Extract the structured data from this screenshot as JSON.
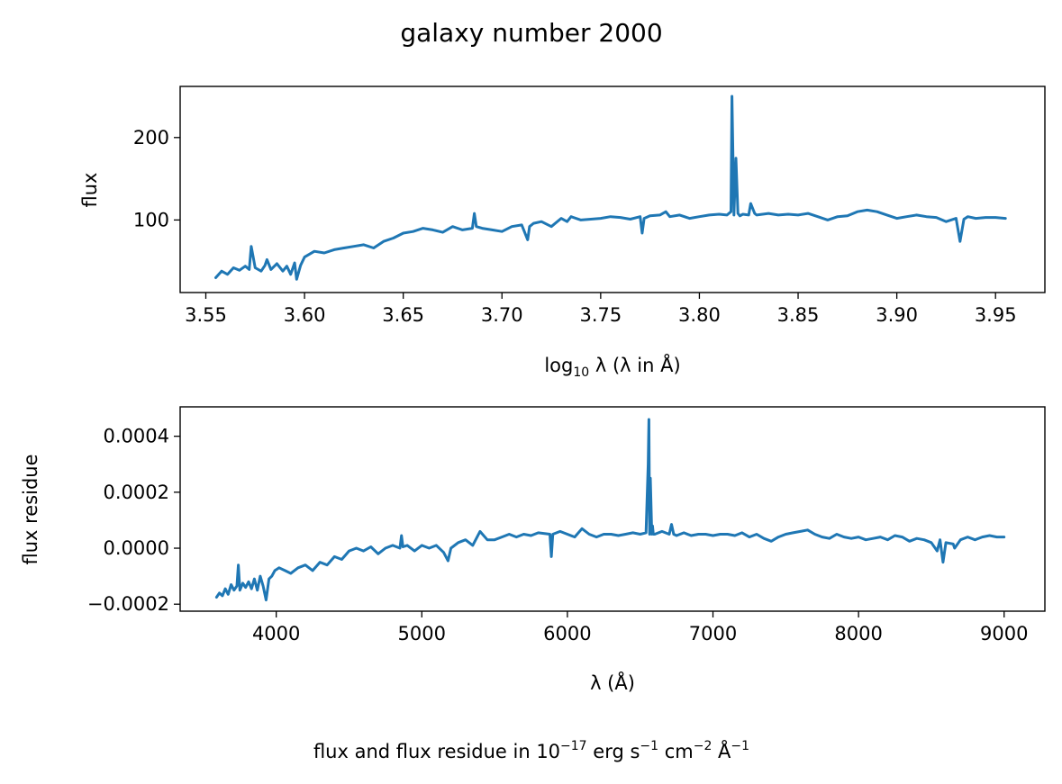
{
  "figure": {
    "title": "galaxy number 2000",
    "footnote_prefix": "flux and flux residue in 10",
    "footnote_exp1": "−17",
    "footnote_mid1": " erg s",
    "footnote_exp2": "−1",
    "footnote_mid2": " cm",
    "footnote_exp3": "−2",
    "footnote_mid3": " Å",
    "footnote_exp4": "−1",
    "line_color": "#1f77b4"
  },
  "chart_data": [
    {
      "type": "line",
      "xlabel_prefix": "log",
      "xlabel_sub": "10",
      "xlabel_suffix": " λ (λ in Å)",
      "ylabel": "flux",
      "xlim": [
        3.537,
        3.975
      ],
      "ylim": [
        12,
        262
      ],
      "xticks": [
        "3.55",
        "3.60",
        "3.65",
        "3.70",
        "3.75",
        "3.80",
        "3.85",
        "3.90",
        "3.95"
      ],
      "yticks": [
        "100",
        "200"
      ],
      "series": [
        {
          "x": [
            3.555,
            3.558,
            3.561,
            3.564,
            3.567,
            3.57,
            3.572,
            3.573,
            3.575,
            3.578,
            3.58,
            3.581,
            3.583,
            3.586,
            3.589,
            3.591,
            3.593,
            3.595,
            3.596,
            3.598,
            3.6,
            3.605,
            3.61,
            3.615,
            3.62,
            3.625,
            3.63,
            3.635,
            3.64,
            3.645,
            3.65,
            3.655,
            3.66,
            3.665,
            3.67,
            3.675,
            3.68,
            3.685,
            3.686,
            3.687,
            3.69,
            3.695,
            3.7,
            3.705,
            3.71,
            3.713,
            3.714,
            3.716,
            3.72,
            3.725,
            3.73,
            3.733,
            3.735,
            3.74,
            3.745,
            3.75,
            3.755,
            3.76,
            3.765,
            3.77,
            3.771,
            3.772,
            3.775,
            3.78,
            3.783,
            3.785,
            3.79,
            3.795,
            3.8,
            3.805,
            3.81,
            3.814,
            3.816,
            3.8165,
            3.8175,
            3.8185,
            3.8195,
            3.8205,
            3.822,
            3.825,
            3.826,
            3.828,
            3.829,
            3.832,
            3.835,
            3.84,
            3.845,
            3.85,
            3.855,
            3.86,
            3.865,
            3.87,
            3.875,
            3.88,
            3.885,
            3.89,
            3.895,
            3.9,
            3.905,
            3.91,
            3.915,
            3.92,
            3.925,
            3.93,
            3.932,
            3.934,
            3.936,
            3.94,
            3.945,
            3.95,
            3.955
          ],
          "y": [
            30,
            38,
            34,
            42,
            39,
            44,
            40,
            68,
            42,
            38,
            45,
            52,
            40,
            47,
            38,
            44,
            34,
            48,
            28,
            45,
            55,
            62,
            60,
            64,
            66,
            68,
            70,
            66,
            74,
            78,
            84,
            86,
            90,
            88,
            85,
            92,
            88,
            90,
            108,
            92,
            90,
            88,
            86,
            92,
            94,
            76,
            92,
            96,
            98,
            92,
            102,
            98,
            104,
            100,
            101,
            102,
            104,
            103,
            101,
            104,
            84,
            102,
            105,
            106,
            110,
            104,
            106,
            102,
            104,
            106,
            107,
            106,
            110,
            250,
            106,
            175,
            108,
            105,
            107,
            106,
            120,
            108,
            106,
            107,
            108,
            106,
            107,
            106,
            108,
            104,
            100,
            104,
            105,
            110,
            112,
            110,
            106,
            102,
            104,
            106,
            104,
            103,
            98,
            102,
            74,
            101,
            104,
            102,
            103,
            103,
            102
          ]
        }
      ]
    },
    {
      "type": "line",
      "xlabel_prefix": "λ (Å)",
      "ylabel": "flux residue",
      "xlim": [
        3340,
        9280
      ],
      "ylim": [
        -0.000225,
        0.000505
      ],
      "xticks": [
        "4000",
        "5000",
        "6000",
        "7000",
        "8000",
        "9000"
      ],
      "yticks": [
        "−0.0002",
        "0.0000",
        "0.0002",
        "0.0004"
      ],
      "series": [
        {
          "x": [
            3590,
            3610,
            3630,
            3650,
            3670,
            3690,
            3710,
            3730,
            3740,
            3750,
            3770,
            3790,
            3810,
            3830,
            3850,
            3870,
            3890,
            3910,
            3930,
            3950,
            3970,
            3990,
            4020,
            4060,
            4100,
            4150,
            4200,
            4250,
            4300,
            4350,
            4400,
            4450,
            4500,
            4550,
            4600,
            4650,
            4700,
            4750,
            4800,
            4850,
            4860,
            4870,
            4900,
            4950,
            5000,
            5050,
            5100,
            5150,
            5180,
            5200,
            5250,
            5300,
            5350,
            5400,
            5450,
            5500,
            5550,
            5600,
            5650,
            5700,
            5750,
            5800,
            5880,
            5890,
            5900,
            5950,
            6000,
            6050,
            6100,
            6150,
            6200,
            6250,
            6300,
            6350,
            6400,
            6450,
            6500,
            6540,
            6555,
            6560,
            6565,
            6570,
            6580,
            6585,
            6590,
            6600,
            6650,
            6700,
            6715,
            6730,
            6750,
            6800,
            6850,
            6900,
            6950,
            7000,
            7050,
            7100,
            7150,
            7200,
            7250,
            7300,
            7350,
            7400,
            7450,
            7500,
            7550,
            7600,
            7650,
            7700,
            7750,
            7800,
            7850,
            7900,
            7950,
            8000,
            8050,
            8100,
            8150,
            8200,
            8250,
            8300,
            8350,
            8400,
            8450,
            8500,
            8540,
            8560,
            8580,
            8600,
            8650,
            8660,
            8700,
            8750,
            8800,
            8850,
            8900,
            8950,
            9000
          ],
          "y": [
            -0.000175,
            -0.00016,
            -0.00017,
            -0.000145,
            -0.000165,
            -0.00013,
            -0.00015,
            -0.000135,
            -6e-05,
            -0.00015,
            -0.000125,
            -0.00014,
            -0.00012,
            -0.000145,
            -0.00011,
            -0.00015,
            -0.0001,
            -0.000135,
            -0.000185,
            -0.00011,
            -0.0001,
            -8e-05,
            -7e-05,
            -8e-05,
            -9e-05,
            -7e-05,
            -6e-05,
            -8e-05,
            -5e-05,
            -6e-05,
            -3e-05,
            -4e-05,
            -1e-05,
            0.0,
            -1e-05,
            5e-06,
            -2e-05,
            0.0,
            1e-05,
            0.0,
            4.5e-05,
            5e-06,
            1e-05,
            -1e-05,
            1e-05,
            0.0,
            1e-05,
            -1.5e-05,
            -4.5e-05,
            0.0,
            2e-05,
            3e-05,
            1e-05,
            6e-05,
            3e-05,
            3e-05,
            4e-05,
            5e-05,
            4e-05,
            5e-05,
            4.5e-05,
            5.5e-05,
            5e-05,
            -3e-05,
            5e-05,
            6e-05,
            5e-05,
            4e-05,
            7e-05,
            5e-05,
            4e-05,
            5e-05,
            5e-05,
            4.5e-05,
            5e-05,
            5.5e-05,
            5e-05,
            5.5e-05,
            0.0003,
            0.00046,
            5e-05,
            0.00025,
            5e-05,
            8e-05,
            5e-05,
            5e-05,
            6e-05,
            5e-05,
            8.5e-05,
            5e-05,
            4.5e-05,
            5.5e-05,
            4.5e-05,
            5e-05,
            5e-05,
            4.5e-05,
            5e-05,
            5e-05,
            4.5e-05,
            5.5e-05,
            4e-05,
            5e-05,
            3.5e-05,
            2.5e-05,
            4e-05,
            5e-05,
            5.5e-05,
            6e-05,
            6.5e-05,
            5e-05,
            4e-05,
            3.5e-05,
            5e-05,
            4e-05,
            3.5e-05,
            4e-05,
            3e-05,
            3.5e-05,
            4e-05,
            3e-05,
            4.5e-05,
            4e-05,
            2.5e-05,
            3.5e-05,
            3e-05,
            2e-05,
            -1e-05,
            3e-05,
            -5e-05,
            2e-05,
            1.5e-05,
            0.0,
            3e-05,
            4e-05,
            3e-05,
            4e-05,
            4.5e-05,
            4e-05,
            4e-05
          ]
        }
      ]
    }
  ]
}
